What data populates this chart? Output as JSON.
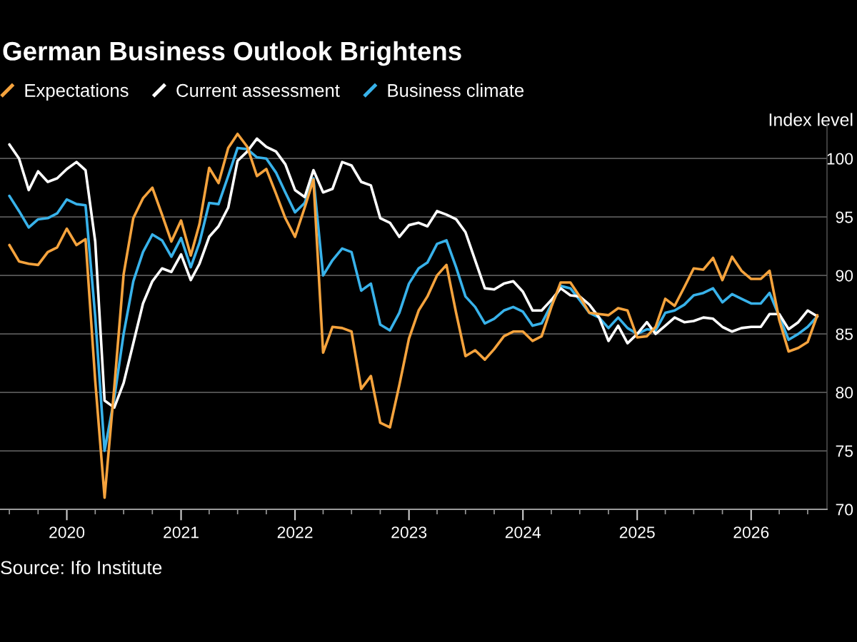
{
  "chart_data": {
    "type": "line",
    "title": "German Business Outlook Brightens",
    "ylabel": "Index level",
    "annotations": [
      "Source: Ifo Institute"
    ],
    "x": [
      "2019-07",
      "2019-08",
      "2019-09",
      "2019-10",
      "2019-11",
      "2019-12",
      "2020-01",
      "2020-02",
      "2020-03",
      "2020-04",
      "2020-05",
      "2020-06",
      "2020-07",
      "2020-08",
      "2020-09",
      "2020-10",
      "2020-11",
      "2020-12",
      "2021-01",
      "2021-02",
      "2021-03",
      "2021-04",
      "2021-05",
      "2021-06",
      "2021-07",
      "2021-08",
      "2021-09",
      "2021-10",
      "2021-11",
      "2021-12",
      "2022-01",
      "2022-02",
      "2022-03",
      "2022-04",
      "2022-05",
      "2022-06",
      "2022-07",
      "2022-08",
      "2022-09",
      "2022-10",
      "2022-11",
      "2022-12",
      "2023-01",
      "2023-02",
      "2023-03",
      "2023-04",
      "2023-05",
      "2023-06",
      "2023-07",
      "2023-08",
      "2023-09",
      "2023-10",
      "2023-11",
      "2023-12",
      "2024-01",
      "2024-02",
      "2024-03",
      "2024-04",
      "2024-05",
      "2024-06",
      "2024-07",
      "2024-08",
      "2024-09",
      "2024-10",
      "2024-11",
      "2024-12",
      "2025-01",
      "2025-02",
      "2025-03",
      "2025-04",
      "2025-05",
      "2025-06",
      "2025-07",
      "2025-08",
      "2025-09",
      "2025-10",
      "2025-11",
      "2025-12",
      "2026-01",
      "2026-02",
      "2026-03",
      "2026-04",
      "2026-05",
      "2026-06",
      "2026-07",
      "2026-08"
    ],
    "series": [
      {
        "name": "Expectations",
        "color": "#f5a33d",
        "values": [
          92.6,
          91.2,
          91.0,
          90.9,
          92.0,
          92.4,
          94.0,
          92.6,
          93.1,
          81.0,
          71.0,
          80.4,
          90.1,
          94.9,
          96.6,
          97.5,
          95.2,
          92.9,
          94.7,
          91.7,
          94.4,
          99.2,
          97.9,
          100.9,
          102.1,
          101.0,
          98.5,
          99.1,
          97.0,
          94.9,
          93.3,
          95.8,
          98.2,
          83.4,
          85.6,
          85.5,
          85.2,
          80.3,
          81.4,
          77.4,
          77.0,
          80.6,
          84.6,
          87.0,
          88.2,
          90.0,
          90.9,
          86.8,
          83.1,
          83.6,
          82.8,
          83.7,
          84.8,
          85.2,
          85.2,
          84.4,
          84.8,
          87.3,
          89.4,
          89.4,
          88.2,
          86.8,
          86.7,
          86.6,
          87.2,
          87.0,
          84.7,
          84.8,
          85.6,
          88.0,
          87.4,
          89.0,
          90.6,
          90.5,
          91.5,
          89.6,
          91.6,
          90.4,
          89.7,
          89.7,
          90.4,
          86.2,
          83.5,
          83.8,
          84.3,
          86.6
        ]
      },
      {
        "name": "Current assessment",
        "color": "#ffffff",
        "values": [
          101.2,
          100.0,
          97.3,
          98.9,
          98.0,
          98.3,
          99.1,
          99.7,
          99.0,
          92.9,
          79.3,
          78.7,
          80.8,
          84.2,
          87.6,
          89.5,
          90.6,
          90.3,
          91.8,
          89.6,
          91.0,
          93.3,
          94.2,
          95.8,
          99.8,
          100.6,
          101.7,
          101.0,
          100.6,
          99.5,
          97.3,
          96.7,
          99.0,
          97.1,
          97.4,
          99.7,
          99.4,
          98.0,
          97.7,
          94.9,
          94.5,
          93.3,
          94.3,
          94.5,
          94.2,
          95.5,
          95.2,
          94.8,
          93.7,
          91.3,
          88.9,
          88.8,
          89.3,
          89.5,
          88.6,
          87.0,
          87.0,
          87.9,
          88.9,
          88.3,
          88.2,
          87.5,
          86.4,
          84.4,
          85.7,
          84.2,
          85.0,
          86.0,
          85.0,
          85.7,
          86.4,
          86.0,
          86.1,
          86.4,
          86.3,
          85.6,
          85.2,
          85.5,
          85.6,
          85.6,
          86.7,
          86.7,
          85.4,
          86.0,
          87.0,
          86.5
        ]
      },
      {
        "name": "Business climate",
        "color": "#38b2ea",
        "values": [
          96.8,
          95.5,
          94.1,
          94.8,
          94.9,
          95.3,
          96.5,
          96.1,
          96.0,
          86.5,
          75.0,
          79.5,
          85.0,
          89.5,
          92.0,
          93.5,
          93.0,
          91.6,
          93.2,
          90.7,
          92.8,
          96.2,
          96.1,
          98.5,
          100.9,
          100.8,
          100.1,
          100.0,
          98.8,
          97.1,
          95.4,
          96.2,
          98.3,
          90.0,
          91.3,
          92.3,
          92.0,
          88.7,
          89.3,
          85.8,
          85.3,
          86.8,
          89.3,
          90.6,
          91.1,
          92.7,
          93.0,
          90.7,
          88.2,
          87.3,
          85.9,
          86.3,
          87.0,
          87.3,
          86.9,
          85.7,
          85.9,
          87.5,
          89.1,
          88.9,
          87.9,
          86.8,
          86.4,
          85.5,
          86.4,
          85.5,
          85.0,
          85.4,
          85.3,
          86.8,
          87.0,
          87.5,
          88.3,
          88.5,
          88.9,
          87.7,
          88.4,
          88.0,
          87.6,
          87.6,
          88.5,
          86.5,
          84.5,
          85.0,
          85.6,
          86.5
        ]
      }
    ],
    "xlim": [
      "2019-06",
      "2026-09"
    ],
    "xticks": [
      {
        "value": "2019-07",
        "label": null
      },
      {
        "value": "2019-10",
        "label": null
      },
      "2020",
      {
        "value": "2020-04",
        "label": null
      },
      {
        "value": "2020-07",
        "label": null
      },
      {
        "value": "2020-10",
        "label": null
      },
      "2021",
      {
        "value": "2021-04",
        "label": null
      },
      {
        "value": "2021-07",
        "label": null
      },
      {
        "value": "2021-10",
        "label": null
      },
      "2022",
      {
        "value": "2022-04",
        "label": null
      },
      {
        "value": "2022-07",
        "label": null
      },
      {
        "value": "2022-10",
        "label": null
      },
      "2023",
      {
        "value": "2023-04",
        "label": null
      },
      {
        "value": "2023-07",
        "label": null
      },
      {
        "value": "2023-10",
        "label": null
      },
      "2024",
      {
        "value": "2024-04",
        "label": null
      },
      {
        "value": "2024-07",
        "label": null
      },
      {
        "value": "2024-10",
        "label": null
      },
      "2025",
      {
        "value": "2025-04",
        "label": null
      },
      {
        "value": "2025-07",
        "label": null
      },
      {
        "value": "2025-10",
        "label": null
      },
      "2026",
      {
        "value": "2026-04",
        "label": null
      },
      {
        "value": "2026-07",
        "label": null
      }
    ],
    "ylim": [
      70,
      103
    ],
    "yticks": [
      70,
      75,
      80,
      85,
      90,
      95,
      100
    ],
    "grid": "y",
    "legend": "top left"
  }
}
